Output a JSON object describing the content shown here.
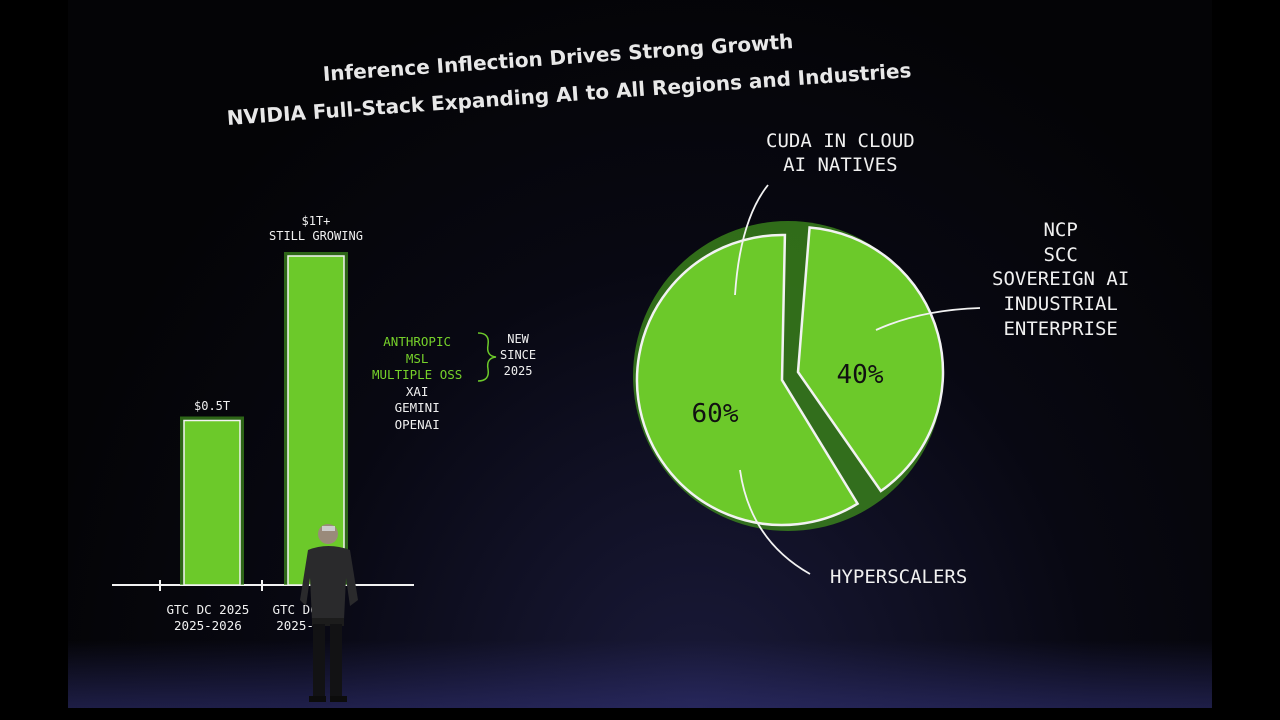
{
  "slide": {
    "title_line1": "Inference Inflection Drives Strong Growth",
    "title_line2": "NVIDIA Full-Stack Expanding AI to All Regions and Industries"
  },
  "colors": {
    "accent_green": "#6cc92a",
    "outline": "#f2f2f2",
    "background": "#050507"
  },
  "chart_data": [
    {
      "type": "bar",
      "categories": [
        "GTC DC 2025\n2025-2026",
        "GTC DC 2025\n2025-2026"
      ],
      "category_lines": [
        [
          "GTC DC 2025",
          "2025-2026"
        ],
        [
          "GTC DC",
          "2025-"
        ]
      ],
      "values": [
        0.5,
        1.0
      ],
      "data_labels": [
        [
          "$0.5T"
        ],
        [
          "$1T+",
          "STILL GROWING"
        ]
      ],
      "ylim": [
        0,
        1.1
      ],
      "annotation": {
        "green_items": [
          "ANTHROPIC",
          "MSL",
          "MULTIPLE OSS"
        ],
        "white_items": [
          "XAI",
          "GEMINI",
          "OPENAI"
        ],
        "brace_note": [
          "NEW",
          "SINCE",
          "2025"
        ]
      }
    },
    {
      "type": "pie",
      "slices": [
        {
          "label": "HYPERSCALERS",
          "value": 60,
          "text": "60%"
        },
        {
          "label": "NCP / SCC / SOVEREIGN AI / INDUSTRIAL / ENTERPRISE",
          "value": 40,
          "text": "40%"
        }
      ],
      "callouts": {
        "top": [
          "CUDA IN CLOUD",
          "AI NATIVES"
        ],
        "right": [
          "NCP",
          "SCC",
          "SOVEREIGN AI",
          "INDUSTRIAL",
          "ENTERPRISE"
        ],
        "bottom": [
          "HYPERSCALERS"
        ]
      }
    }
  ]
}
